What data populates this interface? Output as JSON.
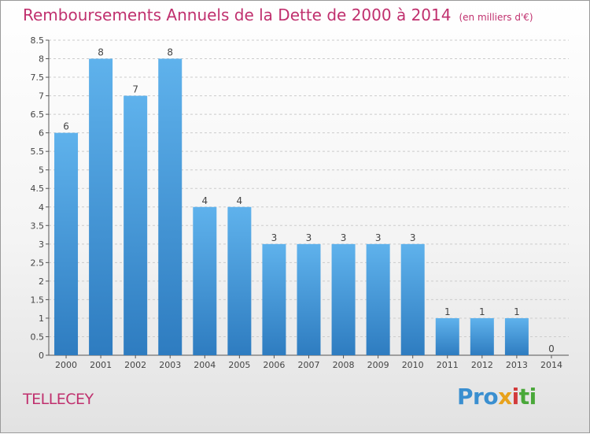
{
  "title": "Remboursements Annuels de la Dette de 2000 à 2014",
  "unit": "(en milliers d'€)",
  "commune": "TELLECEY",
  "logo": {
    "p1": "Pro",
    "p2": "x",
    "p3": "i",
    "p4": "ti"
  },
  "colors": {
    "title": "#c0306e",
    "bar_light": "#5fb2ec",
    "bar_dark": "#2e7cc0",
    "grid": "#cccccc"
  },
  "chart_data": {
    "type": "bar",
    "categories": [
      "2000",
      "2001",
      "2002",
      "2003",
      "2004",
      "2005",
      "2006",
      "2007",
      "2008",
      "2009",
      "2010",
      "2011",
      "2012",
      "2013",
      "2014"
    ],
    "values": [
      6,
      8,
      7,
      8,
      4,
      4,
      3,
      3,
      3,
      3,
      3,
      1,
      1,
      1,
      0
    ],
    "data_labels": [
      "6",
      "8",
      "7",
      "8",
      "4",
      "4",
      "3",
      "3",
      "3",
      "3",
      "3",
      "1",
      "1",
      "1",
      "0"
    ],
    "ylim": [
      0,
      8.5
    ],
    "yticks": [
      "0",
      "0.5",
      "1",
      "1.5",
      "2",
      "2.5",
      "3",
      "3.5",
      "4",
      "4.5",
      "5",
      "5.5",
      "6",
      "6.5",
      "7",
      "7.5",
      "8",
      "8.5"
    ],
    "grid": true,
    "xlabel": "",
    "ylabel": ""
  }
}
